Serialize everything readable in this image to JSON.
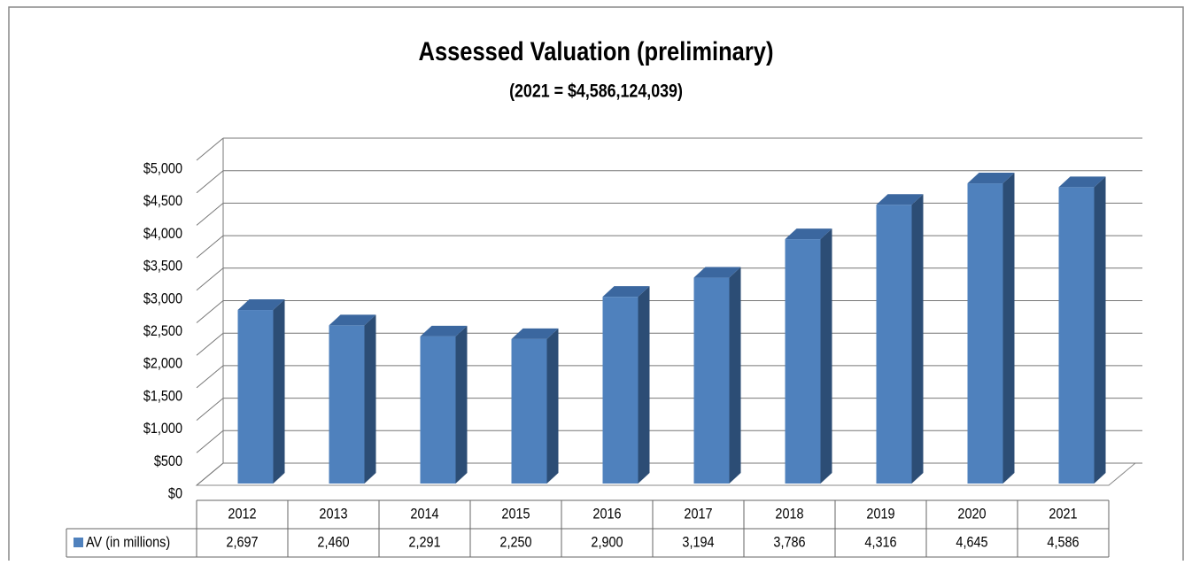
{
  "chart_data": {
    "type": "bar3d",
    "title": "Assessed Valuation (preliminary)",
    "subtitle": "(2021 = $4,586,124,039)",
    "categories": [
      "2012",
      "2013",
      "2014",
      "2015",
      "2016",
      "2017",
      "2018",
      "2019",
      "2020",
      "2021"
    ],
    "series": [
      {
        "name": "AV (in millions)",
        "color": "#4f81bd",
        "values": [
          2697,
          2460,
          2291,
          2250,
          2900,
          3194,
          3786,
          4316,
          4645,
          4586
        ],
        "value_labels": [
          "2,697",
          "2,460",
          "2,291",
          "2,250",
          "2,900",
          "3,194",
          "3,786",
          "4,316",
          "4,645",
          "4,586"
        ]
      }
    ],
    "ylim": [
      0,
      5000
    ],
    "yticks": [
      {
        "value": 0,
        "label": "$0"
      },
      {
        "value": 500,
        "label": "$500"
      },
      {
        "value": 1000,
        "label": "$1,000"
      },
      {
        "value": 1500,
        "label": "$1,500"
      },
      {
        "value": 2000,
        "label": "$2,000"
      },
      {
        "value": 2500,
        "label": "$2,500"
      },
      {
        "value": 3000,
        "label": "$3,000"
      },
      {
        "value": 3500,
        "label": "$3,500"
      },
      {
        "value": 4000,
        "label": "$4,000"
      },
      {
        "value": 4500,
        "label": "$4,500"
      },
      {
        "value": 5000,
        "label": "$5,000"
      }
    ],
    "grid": true
  }
}
